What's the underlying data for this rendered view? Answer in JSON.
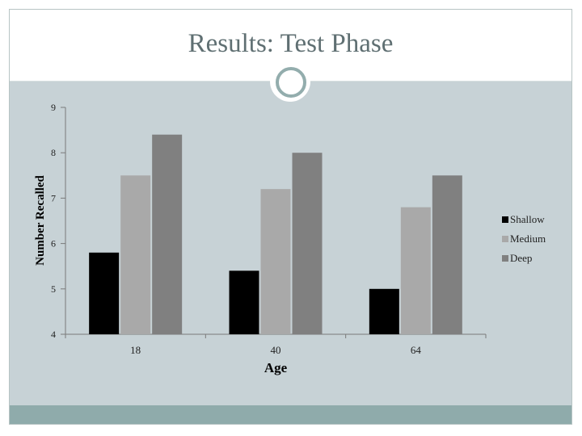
{
  "slide": {
    "title": "Results: Test Phase"
  },
  "colors": {
    "background": "#c7d2d6",
    "title_text": "#5f6f72",
    "accent": "#8fabab"
  },
  "chart_data": {
    "type": "bar",
    "title": "",
    "xlabel": "Age",
    "ylabel": "Number Recalled",
    "categories": [
      "18",
      "40",
      "64"
    ],
    "ylim": [
      4,
      9
    ],
    "yticks": [
      4,
      5,
      6,
      7,
      8,
      9
    ],
    "grid": false,
    "legend_position": "right",
    "series": [
      {
        "name": "Shallow",
        "color": "#000000",
        "values": [
          5.8,
          5.4,
          5.0
        ]
      },
      {
        "name": "Medium",
        "color": "#a9a9a9",
        "values": [
          7.5,
          7.2,
          6.8
        ]
      },
      {
        "name": "Deep",
        "color": "#808080",
        "values": [
          8.4,
          8.0,
          7.5
        ]
      }
    ]
  }
}
